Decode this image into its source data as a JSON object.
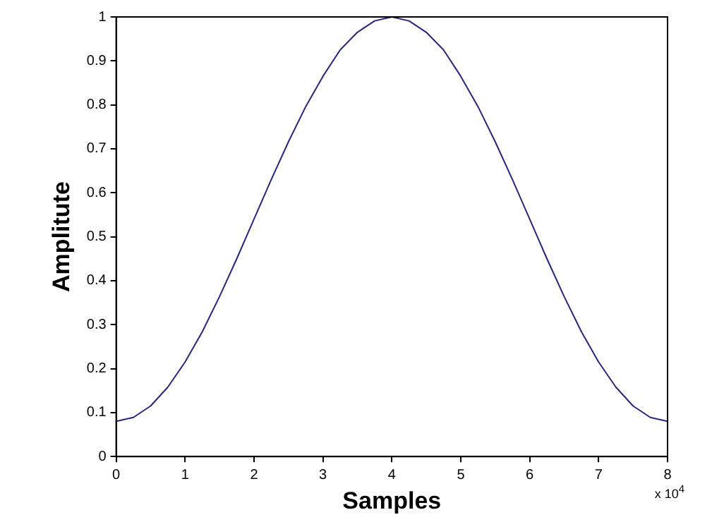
{
  "chart_data": {
    "type": "line",
    "xlabel": "Samples",
    "ylabel": "Amplitute",
    "annotations": [
      "x 10$^{4}$"
    ],
    "x": [
      0,
      0.25,
      0.5,
      0.75,
      1,
      1.25,
      1.5,
      1.75,
      2,
      2.25,
      2.5,
      2.75,
      3,
      3.25,
      3.5,
      3.75,
      4,
      4.25,
      4.5,
      4.75,
      5,
      5.25,
      5.5,
      5.75,
      6,
      6.25,
      6.5,
      6.75,
      7,
      7.25,
      7.5,
      7.75,
      8
    ],
    "series": [
      {
        "color": "#27277f",
        "values": [
          0.08,
          0.089,
          0.115,
          0.158,
          0.215,
          0.284,
          0.364,
          0.45,
          0.54,
          0.63,
          0.716,
          0.796,
          0.865,
          0.925,
          0.965,
          0.991,
          1,
          0.991,
          0.965,
          0.925,
          0.865,
          0.796,
          0.716,
          0.63,
          0.54,
          0.45,
          0.364,
          0.284,
          0.215,
          0.158,
          0.115,
          0.089,
          0.08
        ]
      }
    ],
    "xlim": [
      0,
      8
    ],
    "xticks": [
      0,
      1,
      2,
      3,
      4,
      5,
      6,
      7,
      8
    ],
    "ylim": [
      0,
      1
    ],
    "yticks": [
      0,
      0.1,
      0.2,
      0.3,
      0.4,
      0.5,
      0.6,
      0.7,
      0.8,
      0.9,
      1
    ],
    "grid": false,
    "legend": false,
    "marker": "none",
    "line_style": "solid"
  }
}
